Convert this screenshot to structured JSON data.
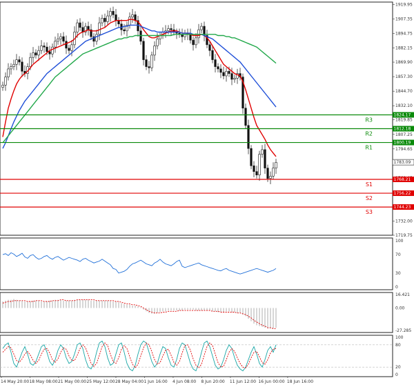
{
  "chart_data": [
    {
      "type": "candlestick",
      "panel": "price",
      "instrument_price_last": 1783.09,
      "y_ticks": [
        1919.95,
        1907.35,
        1894.75,
        1882.15,
        1869.9,
        1857.3,
        1844.7,
        1832.1,
        1819.85,
        1807.25,
        1794.65,
        1782.05,
        1769.45,
        1757.2,
        1744.6,
        1732.0,
        1719.75
      ],
      "ylim": [
        1719.75,
        1922.0
      ],
      "x_ticks": [
        "14 May 20:00",
        "18 May 08:00",
        "21 May 00:00",
        "25 May 12:00",
        "28 May 04:00",
        "1 Jun 16:00",
        "4 Jun 08:00",
        "8 Jun 20:00",
        "11 Jun 12:00",
        "16 Jun 00:00",
        "18 Jun 16:00"
      ],
      "levels": [
        {
          "name": "R3",
          "value": 1824.17,
          "color": "#0a8a0a"
        },
        {
          "name": "R2",
          "value": 1812.18,
          "color": "#0a8a0a"
        },
        {
          "name": "R1",
          "value": 1800.19,
          "color": "#0a8a0a"
        },
        {
          "name": "S1",
          "value": 1768.21,
          "color": "#e00000"
        },
        {
          "name": "S2",
          "value": 1756.22,
          "color": "#e00000"
        },
        {
          "name": "S3",
          "value": 1744.23,
          "color": "#e00000"
        }
      ],
      "close_series": [
        1850,
        1857,
        1864,
        1866,
        1868,
        1872,
        1870,
        1862,
        1860,
        1866,
        1874,
        1878,
        1876,
        1880,
        1884,
        1883,
        1879,
        1877,
        1883,
        1888,
        1890,
        1892,
        1888,
        1882,
        1880,
        1885,
        1896,
        1904,
        1900,
        1896,
        1901,
        1898,
        1892,
        1888,
        1894,
        1904,
        1908,
        1905,
        1910,
        1914,
        1911,
        1906,
        1903,
        1898,
        1897,
        1902,
        1909,
        1911,
        1906,
        1897,
        1888,
        1872,
        1866,
        1865,
        1876,
        1884,
        1890,
        1893,
        1896,
        1897,
        1899,
        1898,
        1896,
        1895,
        1894,
        1892,
        1895,
        1894,
        1889,
        1885,
        1891,
        1898,
        1901,
        1893,
        1885,
        1880,
        1872,
        1866,
        1864,
        1861,
        1858,
        1862,
        1860,
        1855,
        1856,
        1860,
        1857,
        1830,
        1815,
        1795,
        1780,
        1775,
        1772,
        1790,
        1794,
        1778,
        1769,
        1771,
        1778,
        1783
      ],
      "series": [
        {
          "name": "MA fast",
          "color": "#e00000",
          "values": [
            1805,
            1818,
            1830,
            1838,
            1845,
            1851,
            1855,
            1858,
            1860,
            1862,
            1865,
            1868,
            1870,
            1872,
            1874,
            1876,
            1878,
            1880,
            1881,
            1882,
            1883,
            1884,
            1885,
            1886,
            1887,
            1888,
            1890,
            1893,
            1895,
            1896,
            1897,
            1898,
            1897,
            1897,
            1897,
            1898,
            1899,
            1900,
            1902,
            1904,
            1905,
            1906,
            1906,
            1906,
            1906,
            1906,
            1907,
            1907,
            1906,
            1905,
            1902,
            1898,
            1895,
            1892,
            1891,
            1891,
            1892,
            1893,
            1894,
            1895,
            1896,
            1897,
            1897,
            1897,
            1896,
            1895,
            1895,
            1895,
            1894,
            1893,
            1893,
            1893,
            1894,
            1893,
            1891,
            1888,
            1884,
            1880,
            1876,
            1872,
            1868,
            1866,
            1864,
            1862,
            1860,
            1859,
            1858,
            1853,
            1846,
            1838,
            1830,
            1822,
            1815,
            1811,
            1807,
            1803,
            1798,
            1794,
            1791,
            1788
          ]
        },
        {
          "name": "MA mid",
          "color": "#1f4fd8",
          "values": [
            1795,
            1800,
            1806,
            1812,
            1818,
            1823,
            1828,
            1832,
            1836,
            1839,
            1842,
            1845,
            1848,
            1851,
            1854,
            1857,
            1860,
            1862,
            1864,
            1866,
            1868,
            1870,
            1872,
            1874,
            1876,
            1878,
            1880,
            1882,
            1884,
            1886,
            1888,
            1889,
            1890,
            1891,
            1892,
            1893,
            1894,
            1895,
            1896,
            1897,
            1898,
            1899,
            1900,
            1900,
            1901,
            1901,
            1902,
            1902,
            1902,
            1902,
            1901,
            1900,
            1899,
            1898,
            1897,
            1897,
            1896,
            1896,
            1896,
            1896,
            1896,
            1896,
            1896,
            1896,
            1896,
            1895,
            1895,
            1895,
            1895,
            1894,
            1894,
            1894,
            1894,
            1893,
            1892,
            1891,
            1890,
            1888,
            1886,
            1884,
            1882,
            1880,
            1878,
            1876,
            1874,
            1872,
            1870,
            1867,
            1864,
            1861,
            1858,
            1855,
            1852,
            1849,
            1846,
            1843,
            1840,
            1837,
            1834,
            1831
          ]
        },
        {
          "name": "MA slow",
          "color": "#21a84a",
          "values": [
            1800,
            1803,
            1806,
            1809,
            1812,
            1815,
            1818,
            1821,
            1824,
            1827,
            1830,
            1833,
            1836,
            1839,
            1842,
            1845,
            1848,
            1851,
            1854,
            1857,
            1859,
            1861,
            1863,
            1865,
            1867,
            1869,
            1871,
            1873,
            1875,
            1877,
            1878,
            1879,
            1880,
            1881,
            1882,
            1883,
            1884,
            1885,
            1886,
            1887,
            1888,
            1889,
            1890,
            1890,
            1891,
            1891,
            1892,
            1892,
            1893,
            1893,
            1893,
            1893,
            1893,
            1893,
            1893,
            1893,
            1893,
            1893,
            1893,
            1893,
            1893,
            1893,
            1894,
            1894,
            1894,
            1894,
            1894,
            1894,
            1894,
            1894,
            1894,
            1894,
            1894,
            1894,
            1894,
            1894,
            1894,
            1894,
            1893,
            1893,
            1893,
            1892,
            1892,
            1891,
            1891,
            1890,
            1889,
            1888,
            1887,
            1886,
            1885,
            1884,
            1883,
            1881,
            1879,
            1877,
            1875,
            1873,
            1871,
            1869
          ]
        }
      ]
    },
    {
      "type": "line",
      "panel": "oscillator-1",
      "y_ticks": [
        100,
        70,
        30,
        0
      ],
      "ylim": [
        0,
        100
      ],
      "series": [
        {
          "color": "#1f6fd8",
          "values": [
            70,
            72,
            68,
            74,
            71,
            66,
            69,
            73,
            65,
            62,
            68,
            70,
            64,
            60,
            62,
            66,
            68,
            63,
            60,
            64,
            66,
            62,
            58,
            61,
            64,
            62,
            60,
            58,
            55,
            60,
            62,
            58,
            55,
            52,
            54,
            56,
            60,
            56,
            52,
            48,
            40,
            38,
            30,
            32,
            34,
            38,
            45,
            50,
            52,
            55,
            58,
            54,
            50,
            48,
            46,
            52,
            55,
            60,
            54,
            50,
            48,
            46,
            50,
            55,
            58,
            45,
            42,
            44,
            46,
            48,
            50,
            52,
            48,
            46,
            44,
            42,
            40,
            38,
            36,
            35,
            38,
            40,
            36,
            34,
            32,
            30,
            28,
            30,
            32,
            34,
            36,
            38,
            40,
            38,
            36,
            34,
            32,
            34,
            36,
            40
          ]
        }
      ]
    },
    {
      "type": "bar",
      "panel": "oscillator-2",
      "y_ticks": [
        16.421,
        0.0,
        -27.285
      ],
      "ylim": [
        -27.285,
        16.421
      ],
      "bars": [
        8,
        9,
        10,
        10,
        11,
        10,
        9,
        9,
        8,
        8,
        8,
        9,
        9,
        9,
        8,
        8,
        8,
        9,
        9,
        10,
        10,
        10,
        9,
        9,
        9,
        9,
        10,
        10,
        10,
        10,
        10,
        10,
        9,
        9,
        9,
        9,
        9,
        9,
        9,
        9,
        8,
        8,
        7,
        6,
        5,
        4,
        4,
        3,
        3,
        2,
        1,
        -2,
        -4,
        -6,
        -7,
        -7,
        -6,
        -5,
        -4,
        -4,
        -3,
        -3,
        -3,
        -3,
        -3,
        -3,
        -2,
        -2,
        -2,
        -2,
        -3,
        -3,
        -3,
        -3,
        -3,
        -3,
        -4,
        -4,
        -5,
        -5,
        -5,
        -4,
        -4,
        -5,
        -5,
        -6,
        -6,
        -8,
        -10,
        -13,
        -16,
        -19,
        -21,
        -22,
        -23,
        -24,
        -25,
        -25,
        -25,
        -24
      ],
      "signal": [
        6,
        7,
        8,
        8,
        9,
        9,
        9,
        9,
        9,
        8,
        8,
        8,
        9,
        9,
        9,
        8,
        8,
        8,
        9,
        9,
        9,
        10,
        10,
        9,
        9,
        9,
        9,
        10,
        10,
        10,
        10,
        10,
        10,
        10,
        9,
        9,
        9,
        9,
        9,
        9,
        9,
        8,
        8,
        7,
        6,
        5,
        5,
        4,
        4,
        3,
        2,
        0,
        -2,
        -4,
        -5,
        -6,
        -6,
        -6,
        -5,
        -5,
        -4,
        -4,
        -4,
        -4,
        -3,
        -3,
        -3,
        -3,
        -3,
        -3,
        -3,
        -3,
        -3,
        -3,
        -3,
        -3,
        -4,
        -4,
        -4,
        -5,
        -5,
        -5,
        -5,
        -5,
        -5,
        -6,
        -6,
        -7,
        -8,
        -10,
        -12,
        -15,
        -17,
        -19,
        -21,
        -22,
        -24,
        -24,
        -25,
        -25
      ]
    },
    {
      "type": "line",
      "panel": "oscillator-3",
      "y_ticks": [
        100,
        80,
        20,
        0
      ],
      "ylim": [
        0,
        100
      ],
      "series": [
        {
          "color": "#17a6a6",
          "values": [
            70,
            80,
            85,
            60,
            30,
            20,
            40,
            60,
            75,
            55,
            30,
            25,
            35,
            55,
            75,
            80,
            60,
            35,
            25,
            40,
            65,
            80,
            70,
            45,
            30,
            35,
            55,
            80,
            85,
            70,
            40,
            20,
            15,
            30,
            60,
            85,
            90,
            75,
            45,
            25,
            30,
            55,
            80,
            85,
            60,
            30,
            15,
            10,
            25,
            55,
            80,
            90,
            85,
            60,
            35,
            20,
            30,
            55,
            75,
            70,
            45,
            25,
            20,
            40,
            70,
            85,
            80,
            55,
            30,
            15,
            10,
            30,
            60,
            85,
            90,
            75,
            50,
            25,
            15,
            20,
            40,
            65,
            80,
            70,
            45,
            25,
            15,
            10,
            20,
            40,
            60,
            75,
            55,
            30,
            20,
            40,
            65,
            75,
            60,
            80
          ]
        },
        {
          "color": "#e00000",
          "values": [
            60,
            68,
            75,
            72,
            55,
            38,
            33,
            42,
            55,
            62,
            52,
            38,
            30,
            38,
            55,
            68,
            70,
            58,
            40,
            33,
            42,
            60,
            72,
            68,
            50,
            38,
            38,
            52,
            70,
            80,
            72,
            52,
            30,
            22,
            30,
            52,
            75,
            85,
            78,
            55,
            35,
            30,
            45,
            68,
            78,
            70,
            48,
            28,
            18,
            28,
            50,
            72,
            85,
            80,
            62,
            40,
            28,
            32,
            50,
            65,
            68,
            52,
            33,
            25,
            35,
            58,
            78,
            80,
            65,
            42,
            25,
            18,
            28,
            52,
            75,
            85,
            78,
            55,
            32,
            20,
            22,
            40,
            60,
            70,
            62,
            45,
            30,
            20,
            18,
            28,
            45,
            60,
            62,
            48,
            32,
            28,
            40,
            58,
            68,
            70
          ]
        }
      ]
    }
  ]
}
